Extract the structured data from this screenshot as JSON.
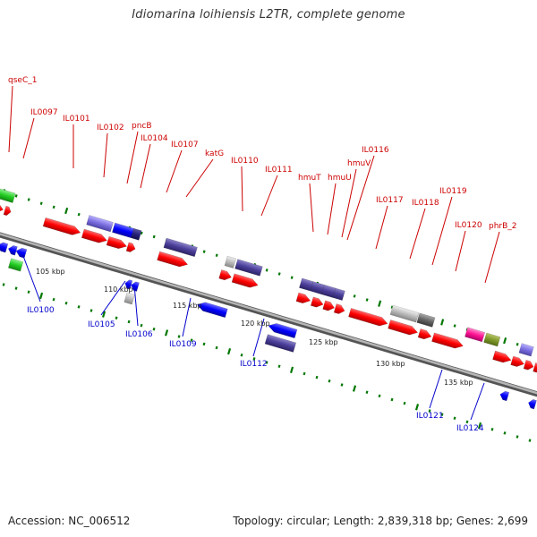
{
  "title": "Idiomarina loihiensis L2TR, complete genome",
  "accession_text": "Accession: NC_006512",
  "summary_text": "Topology: circular; Length: 2,839,318 bp; Genes: 2,699",
  "colors": {
    "forward_label": "#cc0000",
    "reverse_label": "#0000cc",
    "forward_arrow": "#ff0000",
    "reverse_arrow": "#0000ff",
    "tick": "#007700",
    "backbone": "#888888"
  },
  "scale_labels": [
    "105 kbp",
    "110 kbp",
    "115 kbp",
    "120 kbp",
    "125 kbp",
    "130 kbp",
    "135 kbp"
  ],
  "forward_gene_labels": [
    "qseC_1",
    "IL0097",
    "IL0101",
    "IL0102",
    "pncB",
    "IL0104",
    "IL0107",
    "katG",
    "IL0110",
    "IL0111",
    "hmuT",
    "hmuU",
    "hmuV",
    "IL0116",
    "IL0117",
    "IL0118",
    "IL0119",
    "IL0120",
    "phrB_2"
  ],
  "reverse_gene_labels": [
    "IL0100",
    "IL0105",
    "IL0106",
    "IL0109",
    "IL0112",
    "IL0121",
    "IL0124"
  ]
}
